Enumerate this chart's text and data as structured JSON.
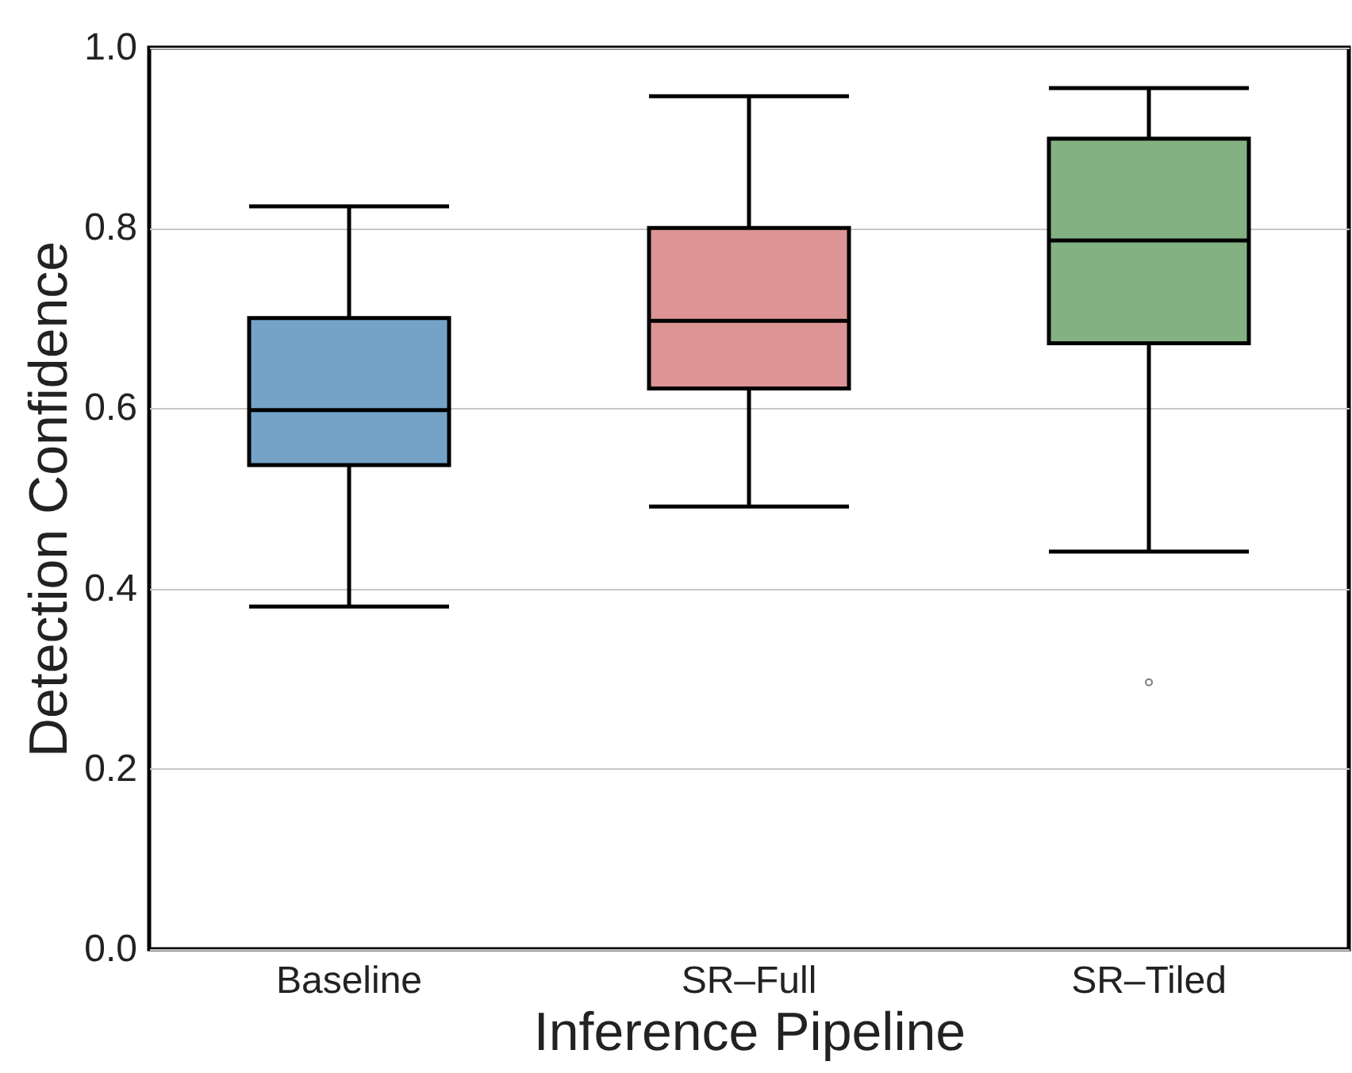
{
  "chart_data": {
    "type": "box",
    "xlabel": "Inference Pipeline",
    "ylabel": "Detection Confidence",
    "categories": [
      "Baseline",
      "SR–Full",
      "SR–Tiled"
    ],
    "colors": [
      "#75a3c8",
      "#dc9494",
      "#84b182"
    ],
    "boxes": [
      {
        "low": 0.38,
        "q1": 0.537,
        "median": 0.598,
        "q3": 0.7,
        "high": 0.824
      },
      {
        "low": 0.491,
        "q1": 0.622,
        "median": 0.697,
        "q3": 0.8,
        "high": 0.946
      },
      {
        "low": 0.441,
        "q1": 0.672,
        "median": 0.786,
        "q3": 0.899,
        "high": 0.955,
        "outliers": [
          0.296
        ]
      }
    ],
    "ylim": [
      0,
      1
    ],
    "yticks": [
      {
        "value": 0,
        "label": "0.0"
      },
      {
        "value": 0.2,
        "label": "0.2"
      },
      {
        "value": 0.4,
        "label": "0.4"
      },
      {
        "value": 0.6,
        "label": "0.6"
      },
      {
        "value": 0.8,
        "label": "0.8"
      },
      {
        "value": 1,
        "label": "1.0"
      }
    ],
    "grid": "y"
  }
}
